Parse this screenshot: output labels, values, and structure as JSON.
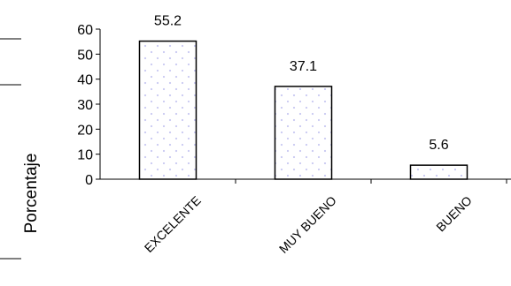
{
  "chart_data": {
    "type": "bar",
    "categories": [
      "EXCELENTE",
      "MUY BUENO",
      "BUENO"
    ],
    "values": [
      55.2,
      37.1,
      5.6
    ],
    "data_labels": [
      "55.2",
      "37.1",
      "5.6"
    ],
    "ylabel": "Porcentaje",
    "ylim": [
      0,
      60
    ],
    "yticks": [
      0,
      10,
      20,
      30,
      40,
      50,
      60
    ],
    "grid": false,
    "bar_fill": "#ffffff",
    "bar_dot_color": "#c9c9f2",
    "bar_stroke": "#000000"
  }
}
